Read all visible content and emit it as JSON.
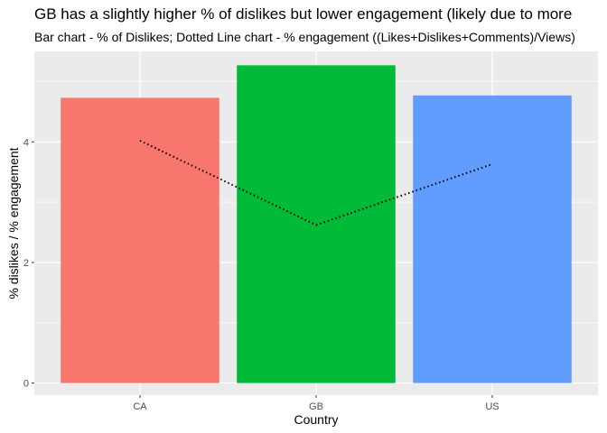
{
  "chart_data": {
    "type": "bar",
    "title": "GB has a slightly higher % of dislikes but lower engagement (likely due to more",
    "subtitle": "Bar chart - % of Dislikes; Dotted Line chart - % engagement ((Likes+Dislikes+Comments)/Views)",
    "xlabel": "Country",
    "ylabel": "% dislikes / % engagement",
    "categories": [
      "CA",
      "GB",
      "US"
    ],
    "series": [
      {
        "name": "% of Dislikes",
        "type": "bar",
        "values": [
          4.73,
          5.27,
          4.77
        ],
        "colors": [
          "#F8766D",
          "#00BA38",
          "#619CFF"
        ]
      },
      {
        "name": "% engagement",
        "type": "line",
        "style": "dotted",
        "values": [
          4.02,
          2.62,
          3.63
        ],
        "color": "#000000"
      }
    ],
    "yticks": [
      0,
      2,
      4
    ],
    "ylim": [
      -0.2,
      5.5
    ],
    "grid": true,
    "panel_background": "#EBEBEB"
  }
}
